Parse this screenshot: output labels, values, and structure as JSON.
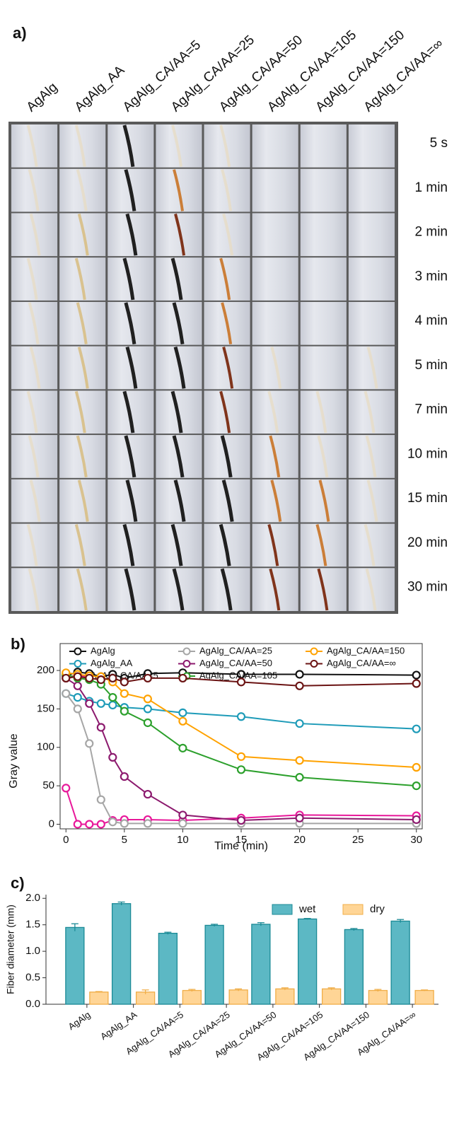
{
  "photo_grid": {
    "panel_label": "a)",
    "columns": [
      "AgAlg",
      "AgAlg_AA",
      "AgAlg_CA/AA=5",
      "AgAlg_CA/AA=25",
      "AgAlg_CA/AA=50",
      "AgAlg_CA/AA=105",
      "AgAlg_CA/AA=150",
      "AgAlg_CA/AA=∞"
    ],
    "rows": [
      "5 s",
      "1 min",
      "2 min",
      "3 min",
      "4 min",
      "5 min",
      "7 min",
      "10 min",
      "15 min",
      "20 min",
      "30 min"
    ]
  },
  "chart_data": [
    {
      "type": "line",
      "panel_label": "b)",
      "x_label": "Time (min)",
      "y_label": "Gray value",
      "x": [
        0,
        1,
        2,
        3,
        4,
        5,
        7,
        10,
        15,
        20,
        30
      ],
      "xlim": [
        -0.5,
        30.5
      ],
      "xticks": [
        0,
        5,
        10,
        15,
        20,
        25,
        30
      ],
      "ylim": [
        -6,
        235
      ],
      "yticks": [
        0,
        50,
        100,
        150,
        200
      ],
      "series": [
        {
          "name": "AgAlg",
          "color": "#111111",
          "values": [
            193,
            198,
            196,
            192,
            195,
            190,
            196,
            197,
            195,
            195,
            194
          ]
        },
        {
          "name": "AgAlg_AA",
          "color": "#1e9bb8",
          "values": [
            170,
            165,
            160,
            157,
            155,
            152,
            150,
            145,
            140,
            131,
            124
          ]
        },
        {
          "name": "AgAlg_CA/AA=5",
          "color": "#e8189a",
          "values": [
            47,
            0,
            0,
            0,
            5,
            6,
            6,
            5,
            8,
            12,
            11
          ]
        },
        {
          "name": "AgAlg_CA/AA=25",
          "color": "#a6a6a6",
          "values": [
            170,
            150,
            105,
            32,
            3,
            1,
            1,
            1,
            1,
            1,
            1
          ]
        },
        {
          "name": "AgAlg_CA/AA=50",
          "color": "#8c1a6e",
          "values": [
            190,
            180,
            157,
            126,
            87,
            62,
            39,
            12,
            5,
            8,
            6
          ]
        },
        {
          "name": "AgAlg_CA/AA=105",
          "color": "#2ca02c",
          "values": [
            195,
            190,
            188,
            182,
            165,
            147,
            132,
            99,
            71,
            61,
            50
          ]
        },
        {
          "name": "AgAlg_CA/AA=150",
          "color": "#ffa200",
          "values": [
            197,
            195,
            193,
            192,
            185,
            170,
            163,
            134,
            88,
            83,
            74
          ]
        },
        {
          "name": "AgAlg_CA/AA=∞",
          "color": "#6b1414",
          "values": [
            190,
            192,
            190,
            188,
            190,
            185,
            190,
            190,
            185,
            180,
            183
          ]
        }
      ]
    },
    {
      "type": "bar",
      "panel_label": "c)",
      "y_label": "Fiber diameter (mm)",
      "categories": [
        "AgAlg",
        "AgAlg_AA",
        "AgAlg_CA/AA=5",
        "AgAlg_CA/AA=25",
        "AgAlg_CA/AA=50",
        "AgAlg_CA/AA=105",
        "AgAlg_CA/AA=150",
        "AgAlg_CA/AA=∞"
      ],
      "ylim": [
        0,
        2.07
      ],
      "yticks": [
        {
          "value": 0,
          "label": "0.0"
        },
        {
          "value": 0.5,
          "label": "0.5"
        },
        {
          "value": 1,
          "label": "1.0"
        },
        {
          "value": 1.5,
          "label": "1.5"
        },
        {
          "value": 2,
          "label": "2.0"
        }
      ],
      "series": [
        {
          "name": "wet",
          "color": "#5cb8c4",
          "edge_color": "#1b8a96",
          "values": [
            1.45,
            1.9,
            1.34,
            1.49,
            1.51,
            1.61,
            1.41,
            1.57
          ],
          "errors": [
            0.07,
            0.03,
            0.02,
            0.02,
            0.03,
            0.01,
            0.02,
            0.03
          ]
        },
        {
          "name": "dry",
          "color": "#ffd596",
          "edge_color": "#f0ae48",
          "values": [
            0.23,
            0.23,
            0.26,
            0.27,
            0.29,
            0.29,
            0.26,
            0.26
          ],
          "errors": [
            0.01,
            0.04,
            0.02,
            0.02,
            0.02,
            0.02,
            0.02,
            0.01
          ]
        }
      ]
    }
  ]
}
